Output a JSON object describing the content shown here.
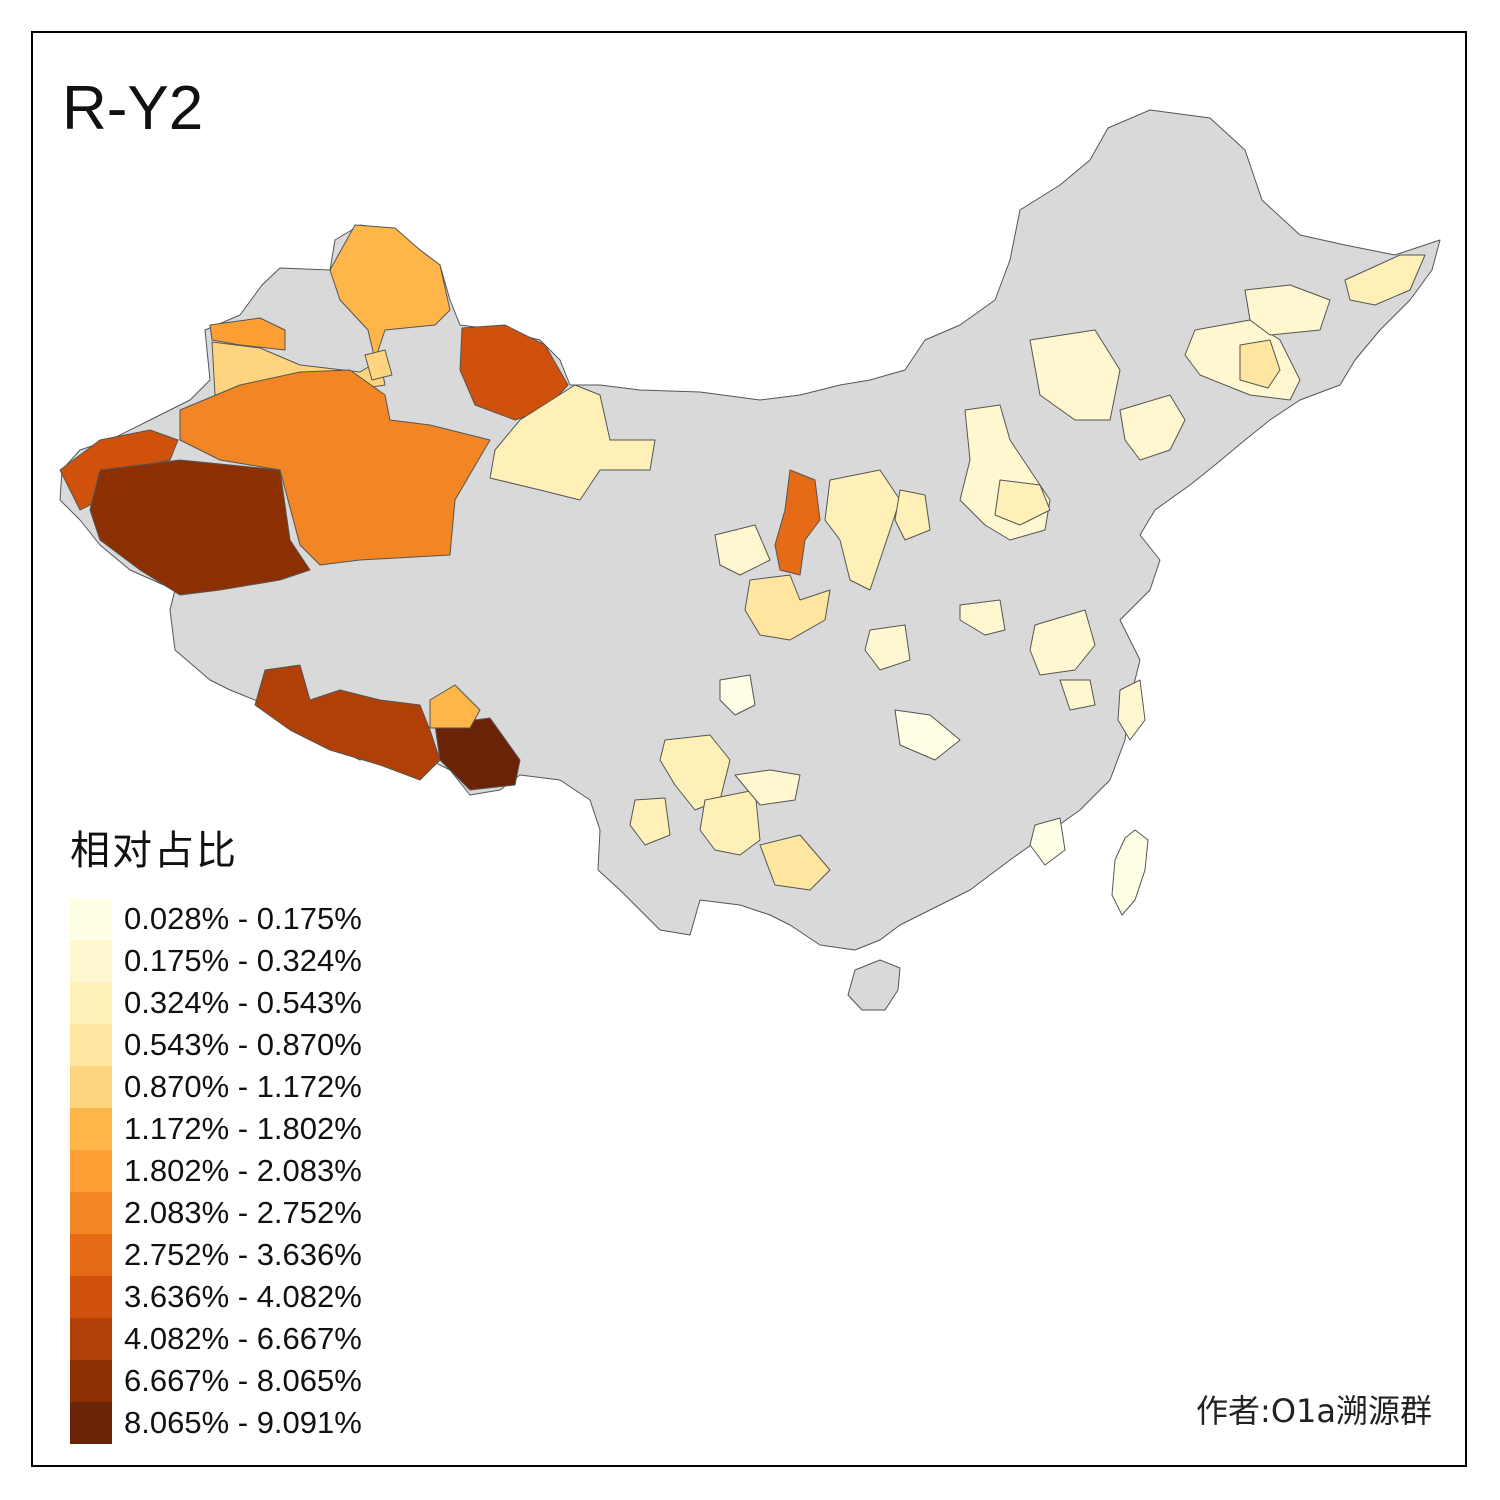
{
  "title": "R-Y2",
  "legend": {
    "title": "相对占比",
    "items": [
      {
        "label": "0.028% - 0.175%",
        "color": "#ffffe5"
      },
      {
        "label": "0.175% - 0.324%",
        "color": "#fff7cf"
      },
      {
        "label": "0.324% - 0.543%",
        "color": "#fff0b8"
      },
      {
        "label": "0.543% - 0.870%",
        "color": "#fee5a0"
      },
      {
        "label": "0.870% - 1.172%",
        "color": "#fed47e"
      },
      {
        "label": "1.172% - 1.802%",
        "color": "#feb649"
      },
      {
        "label": "1.802% - 2.083%",
        "color": "#fd9f33"
      },
      {
        "label": "2.083% - 2.752%",
        "color": "#f28524"
      },
      {
        "label": "2.752% - 3.636%",
        "color": "#e56b17"
      },
      {
        "label": "3.636% - 4.082%",
        "color": "#cf510c"
      },
      {
        "label": "4.082% - 6.667%",
        "color": "#b04006"
      },
      {
        "label": "6.667% - 8.065%",
        "color": "#8c3004"
      },
      {
        "label": "8.065% - 9.091%",
        "color": "#6a2306"
      }
    ]
  },
  "no_data_color": "#d9d9d9",
  "credit": "作者:O1a溯源群"
}
